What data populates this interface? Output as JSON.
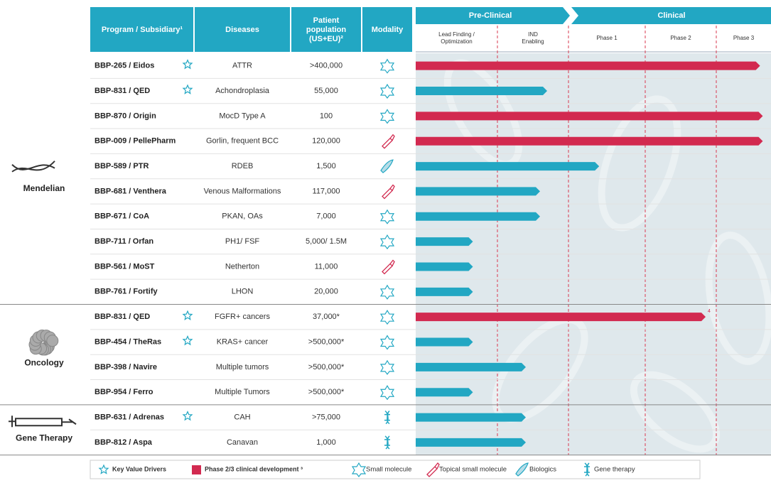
{
  "header": {
    "columns": [
      "Program / Subsidiary¹",
      "Diseases",
      "Patient population (US+EU)²",
      "Modality"
    ],
    "stages": {
      "preclinical": "Pre-Clinical",
      "clinical": "Clinical",
      "substages": [
        [
          "Lead Finding /",
          "Optimization"
        ],
        [
          "IND",
          "Enabling"
        ],
        [
          "Phase 1"
        ],
        [
          "Phase 2"
        ],
        [
          "Phase 3"
        ]
      ]
    }
  },
  "groups": [
    {
      "name": "Mendelian",
      "rows": [
        {
          "program": "BBP-265 / Eidos",
          "disease": "ATTR",
          "population": ">400,000",
          "modality": "Small molecule",
          "key_value_driver": true,
          "phase23": true,
          "progress": 4.8
        },
        {
          "program": "BBP-831 / QED",
          "disease": "Achondroplasia",
          "population": "55,000",
          "modality": "Small molecule",
          "key_value_driver": true,
          "phase23": false,
          "progress": 1.7
        },
        {
          "program": "BBP-870 / Origin",
          "disease": "MocD Type A",
          "population": "100",
          "modality": "Small molecule",
          "key_value_driver": false,
          "phase23": true,
          "progress": 4.85
        },
        {
          "program": "BBP-009 / PellePharm",
          "disease": "Gorlin, frequent BCC",
          "population": "120,000",
          "modality": "Topical small molecule",
          "key_value_driver": false,
          "phase23": true,
          "progress": 4.85
        },
        {
          "program": "BBP-589 / PTR",
          "disease": "RDEB",
          "population": "1,500",
          "modality": "Biologics",
          "key_value_driver": false,
          "phase23": false,
          "progress": 2.4
        },
        {
          "program": "BBP-681 / Venthera",
          "disease": "Venous Malformations",
          "population": "117,000",
          "modality": "Topical small molecule",
          "key_value_driver": false,
          "phase23": false,
          "progress": 1.6
        },
        {
          "program": "BBP-671 / CoA",
          "disease": "PKAN, OAs",
          "population": "7,000",
          "modality": "Small molecule",
          "key_value_driver": false,
          "phase23": false,
          "progress": 1.6
        },
        {
          "program": "BBP-711 / Orfan",
          "disease": "PH1/ FSF",
          "population": "5,000/ 1.5M",
          "modality": "Small molecule",
          "key_value_driver": false,
          "phase23": false,
          "progress": 0.7
        },
        {
          "program": "BBP-561 / MoST",
          "disease": "Netherton",
          "population": "11,000",
          "modality": "Topical small molecule",
          "key_value_driver": false,
          "phase23": false,
          "progress": 0.7
        },
        {
          "program": "BBP-761 / Fortify",
          "disease": "LHON",
          "population": "20,000",
          "modality": "Small molecule",
          "key_value_driver": false,
          "phase23": false,
          "progress": 0.7
        }
      ]
    },
    {
      "name": "Oncology",
      "rows": [
        {
          "program": "BBP-831 / QED",
          "disease": "FGFR+ cancers",
          "population": "37,000*",
          "modality": "Small molecule",
          "key_value_driver": true,
          "phase23": true,
          "progress": 3.85,
          "footnote": "4"
        },
        {
          "program": "BBP-454 / TheRas",
          "disease": "KRAS+ cancer",
          "population": ">500,000*",
          "modality": "Small molecule",
          "key_value_driver": true,
          "phase23": false,
          "progress": 0.7
        },
        {
          "program": "BBP-398 / Navire",
          "disease": "Multiple tumors",
          "population": ">500,000*",
          "modality": "Small molecule",
          "key_value_driver": false,
          "phase23": false,
          "progress": 1.4
        },
        {
          "program": "BBP-954 / Ferro",
          "disease": "Multiple Tumors",
          "population": ">500,000*",
          "modality": "Small molecule",
          "key_value_driver": false,
          "phase23": false,
          "progress": 0.7
        }
      ]
    },
    {
      "name": "Gene Therapy",
      "rows": [
        {
          "program": "BBP-631 / Adrenas",
          "disease": "CAH",
          "population": ">75,000",
          "modality": "Gene therapy",
          "key_value_driver": true,
          "phase23": false,
          "progress": 1.4
        },
        {
          "program": "BBP-812 / Aspa",
          "disease": "Canavan",
          "population": "1,000",
          "modality": "Gene therapy",
          "key_value_driver": false,
          "phase23": false,
          "progress": 1.4
        }
      ]
    }
  ],
  "legend": [
    "Key Value Drivers",
    "Phase 2/3 clinical development ³",
    "Small molecule",
    "Topical small molecule",
    "Biologics",
    "Gene therapy"
  ]
}
